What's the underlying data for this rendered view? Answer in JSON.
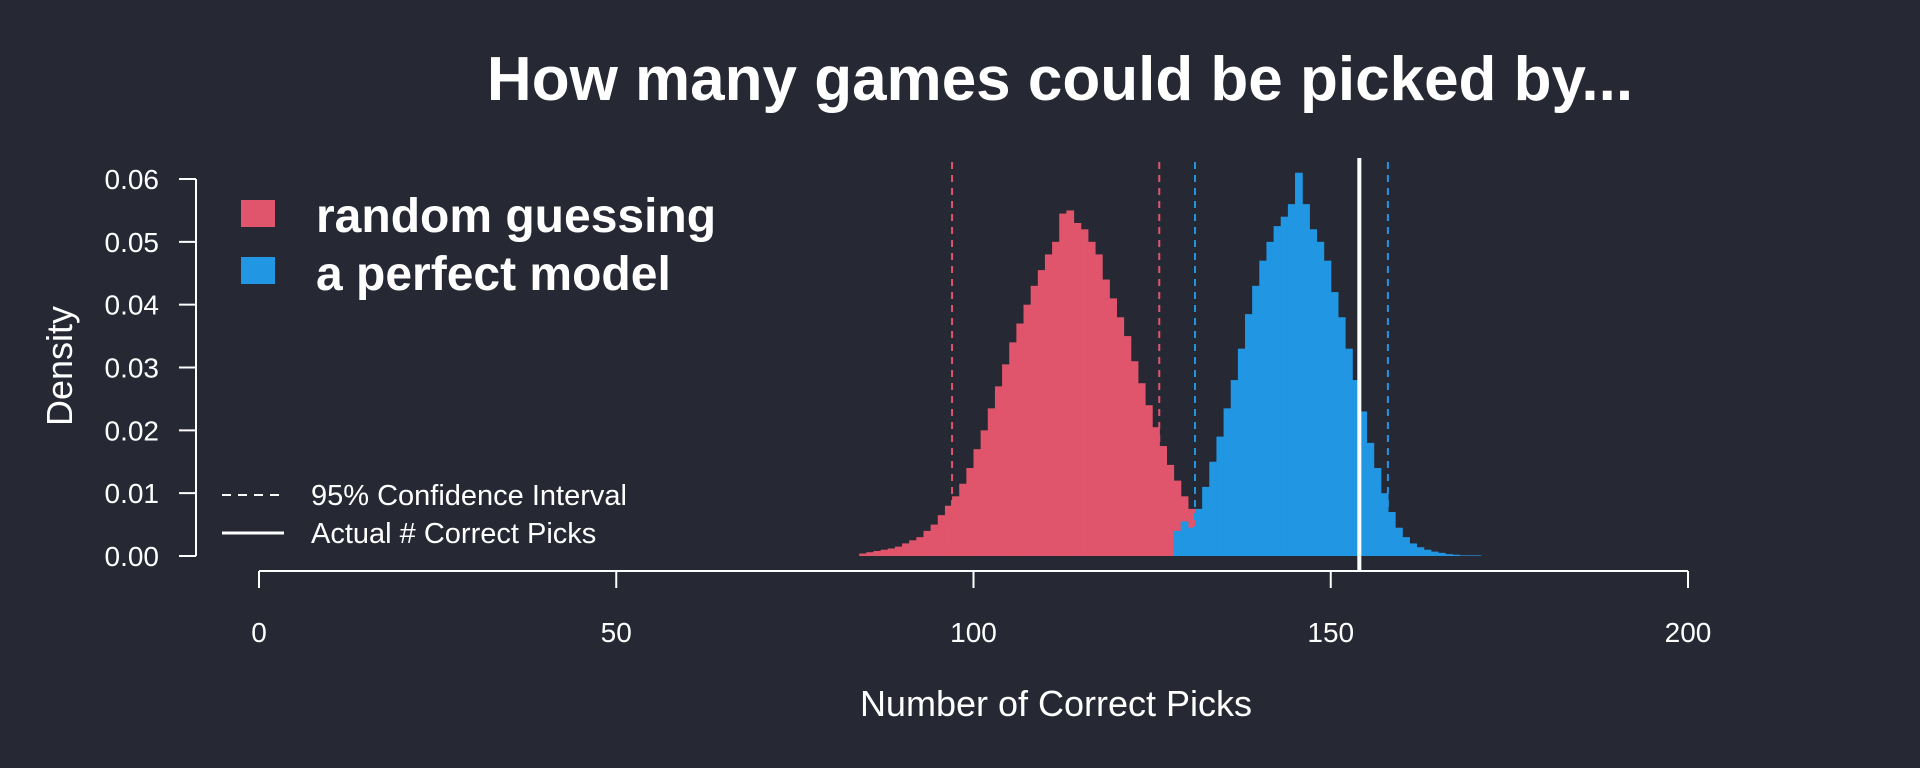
{
  "chart_data": {
    "type": "histogram",
    "title": "How many games could be picked by...",
    "xlabel": "Number of Correct Picks",
    "ylabel": "Density",
    "xlim": [
      0,
      200
    ],
    "ylim": [
      0,
      0.06
    ],
    "x_ticks": [
      0,
      50,
      100,
      150,
      200
    ],
    "y_ticks": [
      0.0,
      0.01,
      0.02,
      0.03,
      0.04,
      0.05,
      0.06
    ],
    "y_tick_labels": [
      "0.00",
      "0.01",
      "0.02",
      "0.03",
      "0.04",
      "0.05",
      "0.06"
    ],
    "bin_width": 1,
    "series": [
      {
        "name": "random guessing",
        "color": "#e0556b",
        "bin_start": 84,
        "values": [
          0.0004,
          0.0006,
          0.0008,
          0.001,
          0.0012,
          0.0015,
          0.002,
          0.0025,
          0.003,
          0.004,
          0.005,
          0.0065,
          0.008,
          0.0095,
          0.0115,
          0.014,
          0.017,
          0.02,
          0.0235,
          0.027,
          0.0305,
          0.034,
          0.037,
          0.04,
          0.043,
          0.0455,
          0.048,
          0.05,
          0.0545,
          0.055,
          0.053,
          0.052,
          0.05,
          0.048,
          0.044,
          0.041,
          0.038,
          0.035,
          0.031,
          0.0275,
          0.024,
          0.0205,
          0.0175,
          0.0145,
          0.012,
          0.0095,
          0.0075,
          0.006,
          0.0045,
          0.0032,
          0.0024,
          0.0016,
          0.0011,
          0.0007,
          0.0004,
          0.0003,
          0.0002,
          0.0001
        ],
        "ci": [
          97,
          126
        ]
      },
      {
        "name": "a perfect model",
        "color": "#2196e3",
        "bin_start": 128,
        "values": [
          0.004,
          0.0055,
          0.0045,
          0.0075,
          0.011,
          0.015,
          0.019,
          0.0235,
          0.028,
          0.033,
          0.0385,
          0.043,
          0.047,
          0.05,
          0.0525,
          0.054,
          0.056,
          0.061,
          0.056,
          0.052,
          0.05,
          0.047,
          0.042,
          0.038,
          0.033,
          0.028,
          0.023,
          0.018,
          0.014,
          0.01,
          0.007,
          0.0045,
          0.003,
          0.002,
          0.0014,
          0.001,
          0.0007,
          0.0005,
          0.0003,
          0.0002,
          0.0001,
          0.0001,
          0.0001
        ],
        "ci": [
          131,
          158
        ]
      }
    ],
    "actual_correct_picks": 154,
    "legend": {
      "position": "top-left",
      "entries": [
        "random guessing",
        "a perfect model"
      ],
      "line_entries": [
        {
          "label": "95% Confidence Interval",
          "style": "dashed"
        },
        {
          "label": "Actual # Correct Picks",
          "style": "solid"
        }
      ]
    },
    "background": "#262833",
    "foreground": "#ffffff"
  }
}
